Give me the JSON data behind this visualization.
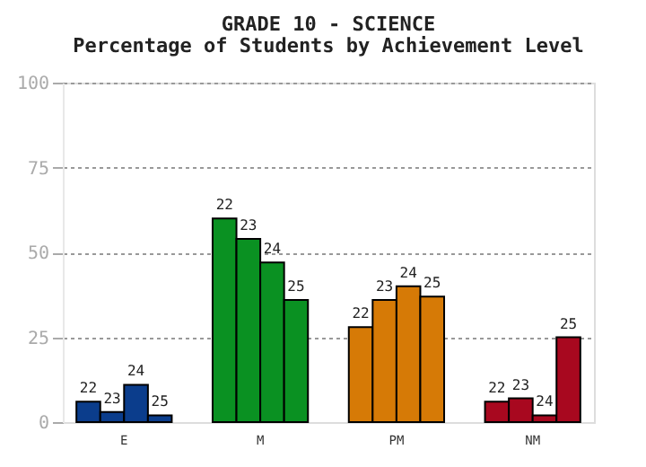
{
  "chart_data": {
    "type": "bar",
    "title": "GRADE 10 - SCIENCE",
    "subtitle": "Percentage of Students by Achievement Level",
    "categories": [
      "E",
      "M",
      "PM",
      "NM"
    ],
    "series": [
      {
        "name": "22",
        "colors": [
          "#0b3d8c",
          "#0a9122",
          "#d67a06",
          "#a8081f"
        ],
        "values": [
          6,
          60,
          28,
          6
        ]
      },
      {
        "name": "23",
        "colors": [
          "#0b3d8c",
          "#0a9122",
          "#d67a06",
          "#a8081f"
        ],
        "values": [
          3,
          54,
          36,
          7
        ]
      },
      {
        "name": "24",
        "colors": [
          "#0b3d8c",
          "#0a9122",
          "#d67a06",
          "#a8081f"
        ],
        "values": [
          11,
          47,
          40,
          2
        ]
      },
      {
        "name": "25",
        "colors": [
          "#0b3d8c",
          "#0a9122",
          "#d67a06",
          "#a8081f"
        ],
        "values": [
          2,
          36,
          37,
          25
        ]
      }
    ],
    "ylim": [
      0,
      100
    ],
    "yticks": [
      0,
      25,
      50,
      75,
      100
    ],
    "grid": "y"
  }
}
